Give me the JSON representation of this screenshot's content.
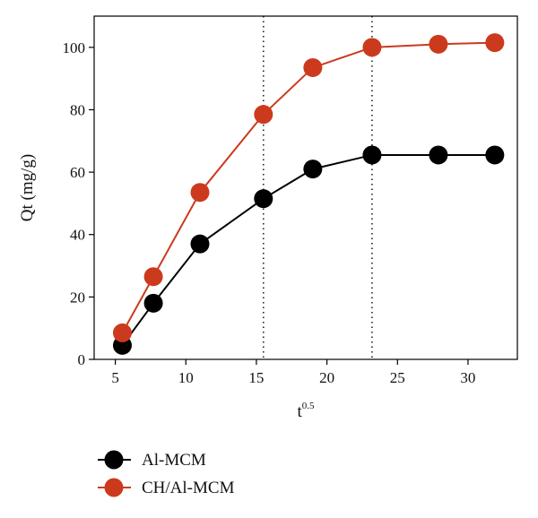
{
  "chart_data": {
    "type": "line",
    "xlabel": "t",
    "xlabel_sup": "0.5",
    "ylabel": "Qt (mg/g)",
    "xlim": [
      3.5,
      33.5
    ],
    "ylim": [
      0,
      110
    ],
    "x_ticks": [
      5,
      10,
      15,
      20,
      25,
      30
    ],
    "y_ticks": [
      0,
      20,
      40,
      60,
      80,
      100
    ],
    "vlines": [
      15.5,
      23.2
    ],
    "grid": false,
    "legend_position": "bottom-left",
    "series": [
      {
        "name": "Al-MCM",
        "color": "#000000",
        "line_color": "#000000",
        "x": [
          5.5,
          7.7,
          11.0,
          15.5,
          19.0,
          23.2,
          27.9,
          31.9
        ],
        "y": [
          4.5,
          18,
          37,
          51.5,
          61,
          65.5,
          65.5,
          65.5
        ]
      },
      {
        "name": "CH/Al-MCM",
        "color": "#cc3a1e",
        "line_color": "#cc3a1e",
        "x": [
          5.5,
          7.7,
          11.0,
          15.5,
          19.0,
          23.2,
          27.9,
          31.9
        ],
        "y": [
          8.5,
          26.5,
          53.5,
          78.5,
          93.5,
          100,
          101,
          101.5
        ]
      }
    ]
  }
}
